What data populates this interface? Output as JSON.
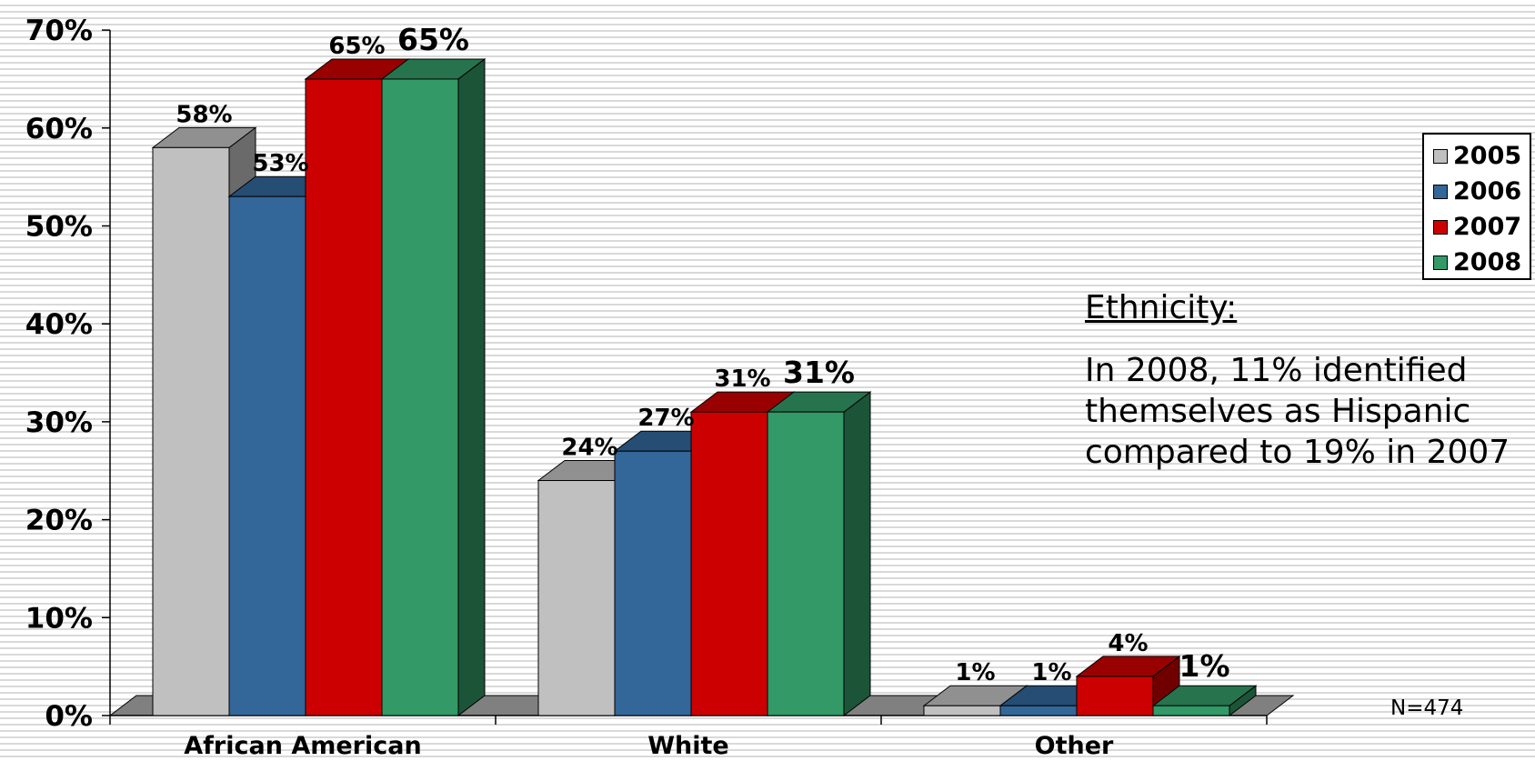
{
  "chart_data": {
    "type": "bar",
    "categories": [
      "African American",
      "White",
      "Other"
    ],
    "series": [
      {
        "name": "2005",
        "values": [
          58,
          24,
          1
        ],
        "labels": [
          "58%",
          "24%",
          "1%"
        ],
        "color": "#c0c0c0"
      },
      {
        "name": "2006",
        "values": [
          53,
          27,
          1
        ],
        "labels": [
          "53%",
          "27%",
          "1%"
        ],
        "color": "#336699"
      },
      {
        "name": "2007",
        "values": [
          65,
          31,
          4
        ],
        "labels": [
          "65%",
          "31%",
          "4%"
        ],
        "color": "#cc0000"
      },
      {
        "name": "2008",
        "values": [
          65,
          31,
          1
        ],
        "labels": [
          "65%",
          "31%",
          "1%"
        ],
        "color": "#339966"
      }
    ],
    "yticks": [
      "0%",
      "10%",
      "20%",
      "30%",
      "40%",
      "50%",
      "60%",
      "70%"
    ],
    "ylim": [
      0,
      70
    ],
    "style": "3d-clustered-column",
    "grid": false,
    "legend_position": "right"
  },
  "annotation": {
    "title": "Ethnicity:",
    "text": "In 2008, 11% identified themselves as Hispanic compared to 19% in 2007"
  },
  "sample_size": "N=474"
}
